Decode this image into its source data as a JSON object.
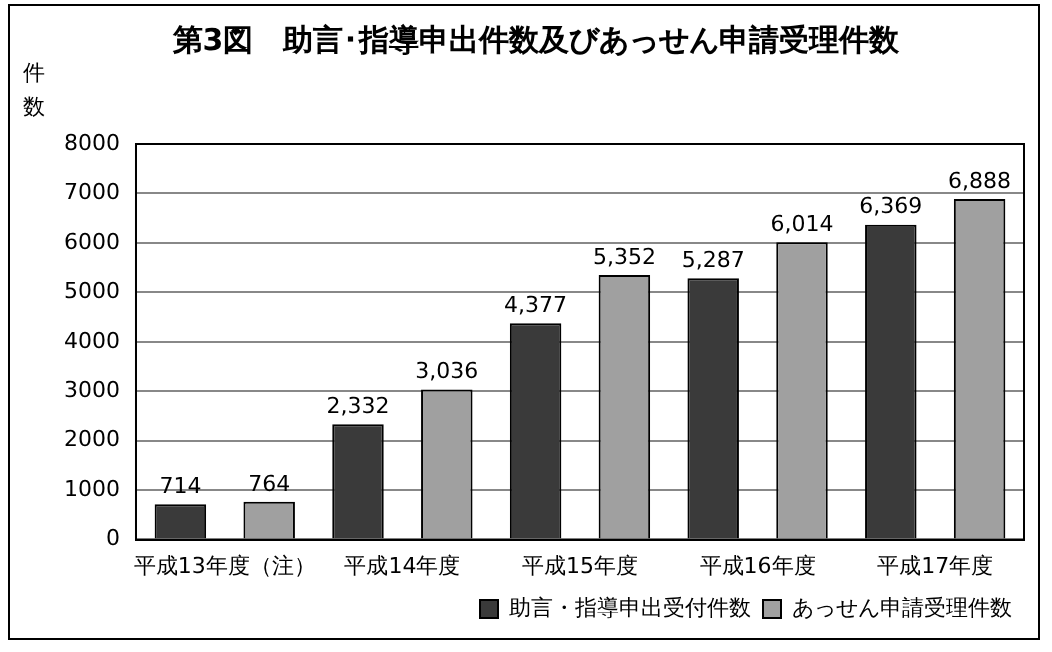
{
  "chart_data": {
    "type": "bar",
    "title": "第3図　助言･指導申出件数及びあっせん申請受理件数",
    "ylabel": "件数",
    "categories": [
      "平成13年度（注）",
      "平成14年度",
      "平成15年度",
      "平成16年度",
      "平成17年度"
    ],
    "series": [
      {
        "name": "助言・指導申出受付件数",
        "color": "#3a3a3a",
        "values": [
          714,
          2332,
          4377,
          5287,
          6369
        ],
        "value_labels": [
          "714",
          "2,332",
          "4,377",
          "5,287",
          "6,369"
        ]
      },
      {
        "name": "あっせん申請受理件数",
        "color": "#a0a0a0",
        "values": [
          764,
          3036,
          5352,
          6014,
          6888
        ],
        "value_labels": [
          "764",
          "3,036",
          "5,352",
          "6,014",
          "6,888"
        ]
      }
    ],
    "ylim": [
      0,
      8000
    ],
    "yticks": [
      0,
      1000,
      2000,
      3000,
      4000,
      5000,
      6000,
      7000,
      8000
    ],
    "grid": "y",
    "legend": "bottom right"
  }
}
